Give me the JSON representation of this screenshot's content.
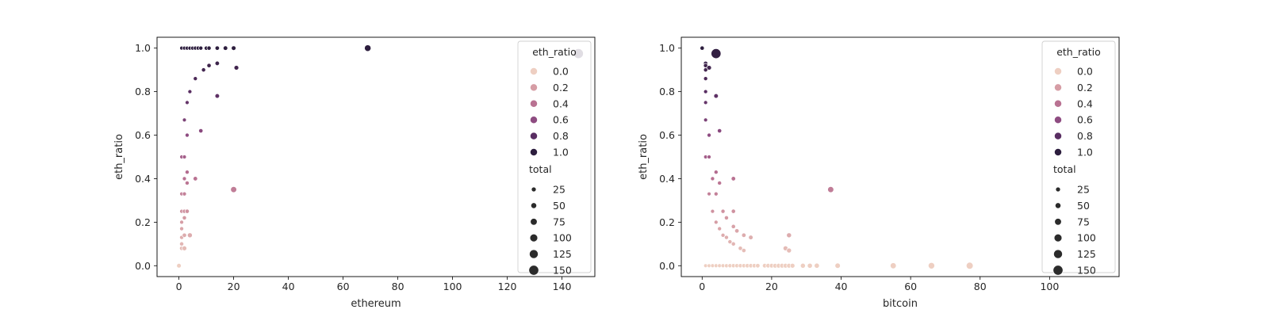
{
  "chart_data": [
    {
      "type": "scatter",
      "xlabel": "ethereum",
      "ylabel": "eth_ratio",
      "xlim": [
        -8,
        152
      ],
      "ylim": [
        -0.05,
        1.05
      ],
      "xticks": [
        0,
        20,
        40,
        60,
        80,
        100,
        120,
        140
      ],
      "yticks": [
        0.0,
        0.2,
        0.4,
        0.6,
        0.8,
        1.0
      ],
      "xtick_labels": [
        "0",
        "20",
        "40",
        "60",
        "80",
        "100",
        "120",
        "140"
      ],
      "ytick_labels": [
        "0.0",
        "0.2",
        "0.4",
        "0.6",
        "0.8",
        "1.0"
      ],
      "grid": false,
      "legend": {
        "placement": "upper-right",
        "hue_title": "eth_ratio",
        "hue_labels": [
          "0.0",
          "0.2",
          "0.4",
          "0.6",
          "0.8",
          "1.0"
        ],
        "hue_values": [
          0.0,
          0.2,
          0.4,
          0.6,
          0.8,
          1.0
        ],
        "size_title": "total",
        "size_labels": [
          "25",
          "50",
          "75",
          "100",
          "125",
          "150"
        ],
        "size_values": [
          25,
          50,
          75,
          100,
          125,
          150
        ]
      },
      "points": [
        {
          "x": 0,
          "y": 0.0,
          "total": 40
        },
        {
          "x": 0,
          "y": 0.0,
          "total": 30
        },
        {
          "x": 0,
          "y": 0.0,
          "total": 20
        },
        {
          "x": 1,
          "y": 0.08,
          "total": 12
        },
        {
          "x": 1,
          "y": 0.1,
          "total": 10
        },
        {
          "x": 1,
          "y": 0.13,
          "total": 8
        },
        {
          "x": 1,
          "y": 0.17,
          "total": 6
        },
        {
          "x": 2,
          "y": 0.08,
          "total": 24
        },
        {
          "x": 1,
          "y": 0.2,
          "total": 5
        },
        {
          "x": 2,
          "y": 0.14,
          "total": 14
        },
        {
          "x": 2,
          "y": 0.22,
          "total": 9
        },
        {
          "x": 1,
          "y": 0.25,
          "total": 4
        },
        {
          "x": 2,
          "y": 0.25,
          "total": 8
        },
        {
          "x": 3,
          "y": 0.25,
          "total": 12
        },
        {
          "x": 4,
          "y": 0.14,
          "total": 28
        },
        {
          "x": 1,
          "y": 0.33,
          "total": 3
        },
        {
          "x": 2,
          "y": 0.33,
          "total": 6
        },
        {
          "x": 2,
          "y": 0.4,
          "total": 5
        },
        {
          "x": 3,
          "y": 0.38,
          "total": 8
        },
        {
          "x": 3,
          "y": 0.43,
          "total": 7
        },
        {
          "x": 1,
          "y": 0.5,
          "total": 2
        },
        {
          "x": 2,
          "y": 0.5,
          "total": 4
        },
        {
          "x": 6,
          "y": 0.4,
          "total": 15
        },
        {
          "x": 20,
          "y": 0.35,
          "total": 57
        },
        {
          "x": 3,
          "y": 0.6,
          "total": 5
        },
        {
          "x": 2,
          "y": 0.67,
          "total": 3
        },
        {
          "x": 8,
          "y": 0.62,
          "total": 13
        },
        {
          "x": 3,
          "y": 0.75,
          "total": 4
        },
        {
          "x": 4,
          "y": 0.8,
          "total": 5
        },
        {
          "x": 14,
          "y": 0.78,
          "total": 18
        },
        {
          "x": 6,
          "y": 0.86,
          "total": 7
        },
        {
          "x": 9,
          "y": 0.9,
          "total": 10
        },
        {
          "x": 11,
          "y": 0.92,
          "total": 12
        },
        {
          "x": 14,
          "y": 0.93,
          "total": 15
        },
        {
          "x": 21,
          "y": 0.91,
          "total": 23
        },
        {
          "x": 1,
          "y": 1.0,
          "total": 1
        },
        {
          "x": 2,
          "y": 1.0,
          "total": 2
        },
        {
          "x": 3,
          "y": 1.0,
          "total": 3
        },
        {
          "x": 4,
          "y": 1.0,
          "total": 4
        },
        {
          "x": 5,
          "y": 1.0,
          "total": 5
        },
        {
          "x": 6,
          "y": 1.0,
          "total": 6
        },
        {
          "x": 7,
          "y": 1.0,
          "total": 7
        },
        {
          "x": 8,
          "y": 1.0,
          "total": 8
        },
        {
          "x": 10,
          "y": 1.0,
          "total": 10
        },
        {
          "x": 11,
          "y": 1.0,
          "total": 11
        },
        {
          "x": 14,
          "y": 1.0,
          "total": 14
        },
        {
          "x": 17,
          "y": 1.0,
          "total": 17
        },
        {
          "x": 20,
          "y": 1.0,
          "total": 20
        },
        {
          "x": 69,
          "y": 1.0,
          "total": 69
        },
        {
          "x": 146,
          "y": 0.975,
          "total": 150
        }
      ]
    },
    {
      "type": "scatter",
      "xlabel": "bitcoin",
      "ylabel": "eth_ratio",
      "xlim": [
        -6,
        120
      ],
      "ylim": [
        -0.05,
        1.05
      ],
      "xticks": [
        0,
        20,
        40,
        60,
        80,
        100
      ],
      "yticks": [
        0.0,
        0.2,
        0.4,
        0.6,
        0.8,
        1.0
      ],
      "xtick_labels": [
        "0",
        "20",
        "40",
        "60",
        "80",
        "100"
      ],
      "ytick_labels": [
        "0.0",
        "0.2",
        "0.4",
        "0.6",
        "0.8",
        "1.0"
      ],
      "grid": false,
      "legend": {
        "placement": "upper-right",
        "hue_title": "eth_ratio",
        "hue_labels": [
          "0.0",
          "0.2",
          "0.4",
          "0.6",
          "0.8",
          "1.0"
        ],
        "hue_values": [
          0.0,
          0.2,
          0.4,
          0.6,
          0.8,
          1.0
        ],
        "size_title": "total",
        "size_labels": [
          "25",
          "50",
          "75",
          "100",
          "125",
          "150"
        ],
        "size_values": [
          25,
          50,
          75,
          100,
          125,
          150
        ]
      },
      "points": [
        {
          "x": 0,
          "y": 1.0,
          "total": 30
        },
        {
          "x": 0,
          "y": 1.0,
          "total": 12
        },
        {
          "x": 4,
          "y": 0.975,
          "total": 150
        },
        {
          "x": 1,
          "y": 0.93,
          "total": 14
        },
        {
          "x": 1,
          "y": 0.92,
          "total": 12
        },
        {
          "x": 2,
          "y": 0.91,
          "total": 23
        },
        {
          "x": 1,
          "y": 0.9,
          "total": 10
        },
        {
          "x": 1,
          "y": 0.86,
          "total": 7
        },
        {
          "x": 1,
          "y": 0.8,
          "total": 5
        },
        {
          "x": 4,
          "y": 0.78,
          "total": 18
        },
        {
          "x": 1,
          "y": 0.75,
          "total": 4
        },
        {
          "x": 1,
          "y": 0.67,
          "total": 3
        },
        {
          "x": 5,
          "y": 0.62,
          "total": 13
        },
        {
          "x": 2,
          "y": 0.6,
          "total": 5
        },
        {
          "x": 1,
          "y": 0.5,
          "total": 2
        },
        {
          "x": 2,
          "y": 0.5,
          "total": 4
        },
        {
          "x": 4,
          "y": 0.43,
          "total": 7
        },
        {
          "x": 9,
          "y": 0.4,
          "total": 15
        },
        {
          "x": 3,
          "y": 0.4,
          "total": 5
        },
        {
          "x": 5,
          "y": 0.38,
          "total": 8
        },
        {
          "x": 37,
          "y": 0.35,
          "total": 57
        },
        {
          "x": 2,
          "y": 0.33,
          "total": 3
        },
        {
          "x": 4,
          "y": 0.33,
          "total": 6
        },
        {
          "x": 3,
          "y": 0.25,
          "total": 4
        },
        {
          "x": 6,
          "y": 0.25,
          "total": 8
        },
        {
          "x": 9,
          "y": 0.25,
          "total": 12
        },
        {
          "x": 7,
          "y": 0.22,
          "total": 9
        },
        {
          "x": 4,
          "y": 0.2,
          "total": 5
        },
        {
          "x": 9,
          "y": 0.18,
          "total": 12
        },
        {
          "x": 5,
          "y": 0.17,
          "total": 6
        },
        {
          "x": 10,
          "y": 0.16,
          "total": 14
        },
        {
          "x": 6,
          "y": 0.14,
          "total": 7
        },
        {
          "x": 12,
          "y": 0.14,
          "total": 15
        },
        {
          "x": 7,
          "y": 0.13,
          "total": 8
        },
        {
          "x": 14,
          "y": 0.13,
          "total": 18
        },
        {
          "x": 8,
          "y": 0.11,
          "total": 9
        },
        {
          "x": 9,
          "y": 0.1,
          "total": 10
        },
        {
          "x": 11,
          "y": 0.08,
          "total": 12
        },
        {
          "x": 12,
          "y": 0.07,
          "total": 13
        },
        {
          "x": 24,
          "y": 0.08,
          "total": 26
        },
        {
          "x": 25,
          "y": 0.07,
          "total": 27
        },
        {
          "x": 25,
          "y": 0.14,
          "total": 29
        },
        {
          "x": 1,
          "y": 0.0,
          "total": 1
        },
        {
          "x": 2,
          "y": 0.0,
          "total": 2
        },
        {
          "x": 3,
          "y": 0.0,
          "total": 3
        },
        {
          "x": 4,
          "y": 0.0,
          "total": 4
        },
        {
          "x": 5,
          "y": 0.0,
          "total": 5
        },
        {
          "x": 6,
          "y": 0.0,
          "total": 6
        },
        {
          "x": 7,
          "y": 0.0,
          "total": 7
        },
        {
          "x": 8,
          "y": 0.0,
          "total": 8
        },
        {
          "x": 9,
          "y": 0.0,
          "total": 9
        },
        {
          "x": 10,
          "y": 0.0,
          "total": 10
        },
        {
          "x": 11,
          "y": 0.0,
          "total": 11
        },
        {
          "x": 12,
          "y": 0.0,
          "total": 12
        },
        {
          "x": 13,
          "y": 0.0,
          "total": 13
        },
        {
          "x": 14,
          "y": 0.0,
          "total": 14
        },
        {
          "x": 15,
          "y": 0.0,
          "total": 15
        },
        {
          "x": 16,
          "y": 0.0,
          "total": 16
        },
        {
          "x": 18,
          "y": 0.0,
          "total": 18
        },
        {
          "x": 19,
          "y": 0.0,
          "total": 19
        },
        {
          "x": 20,
          "y": 0.0,
          "total": 20
        },
        {
          "x": 21,
          "y": 0.0,
          "total": 21
        },
        {
          "x": 22,
          "y": 0.0,
          "total": 22
        },
        {
          "x": 23,
          "y": 0.0,
          "total": 23
        },
        {
          "x": 24,
          "y": 0.0,
          "total": 24
        },
        {
          "x": 25,
          "y": 0.0,
          "total": 25
        },
        {
          "x": 26,
          "y": 0.0,
          "total": 26
        },
        {
          "x": 29,
          "y": 0.0,
          "total": 29
        },
        {
          "x": 31,
          "y": 0.0,
          "total": 31
        },
        {
          "x": 33,
          "y": 0.0,
          "total": 33
        },
        {
          "x": 39,
          "y": 0.0,
          "total": 39
        },
        {
          "x": 55,
          "y": 0.0,
          "total": 55
        },
        {
          "x": 66,
          "y": 0.0,
          "total": 66
        },
        {
          "x": 77,
          "y": 0.0,
          "total": 77
        }
      ]
    }
  ]
}
